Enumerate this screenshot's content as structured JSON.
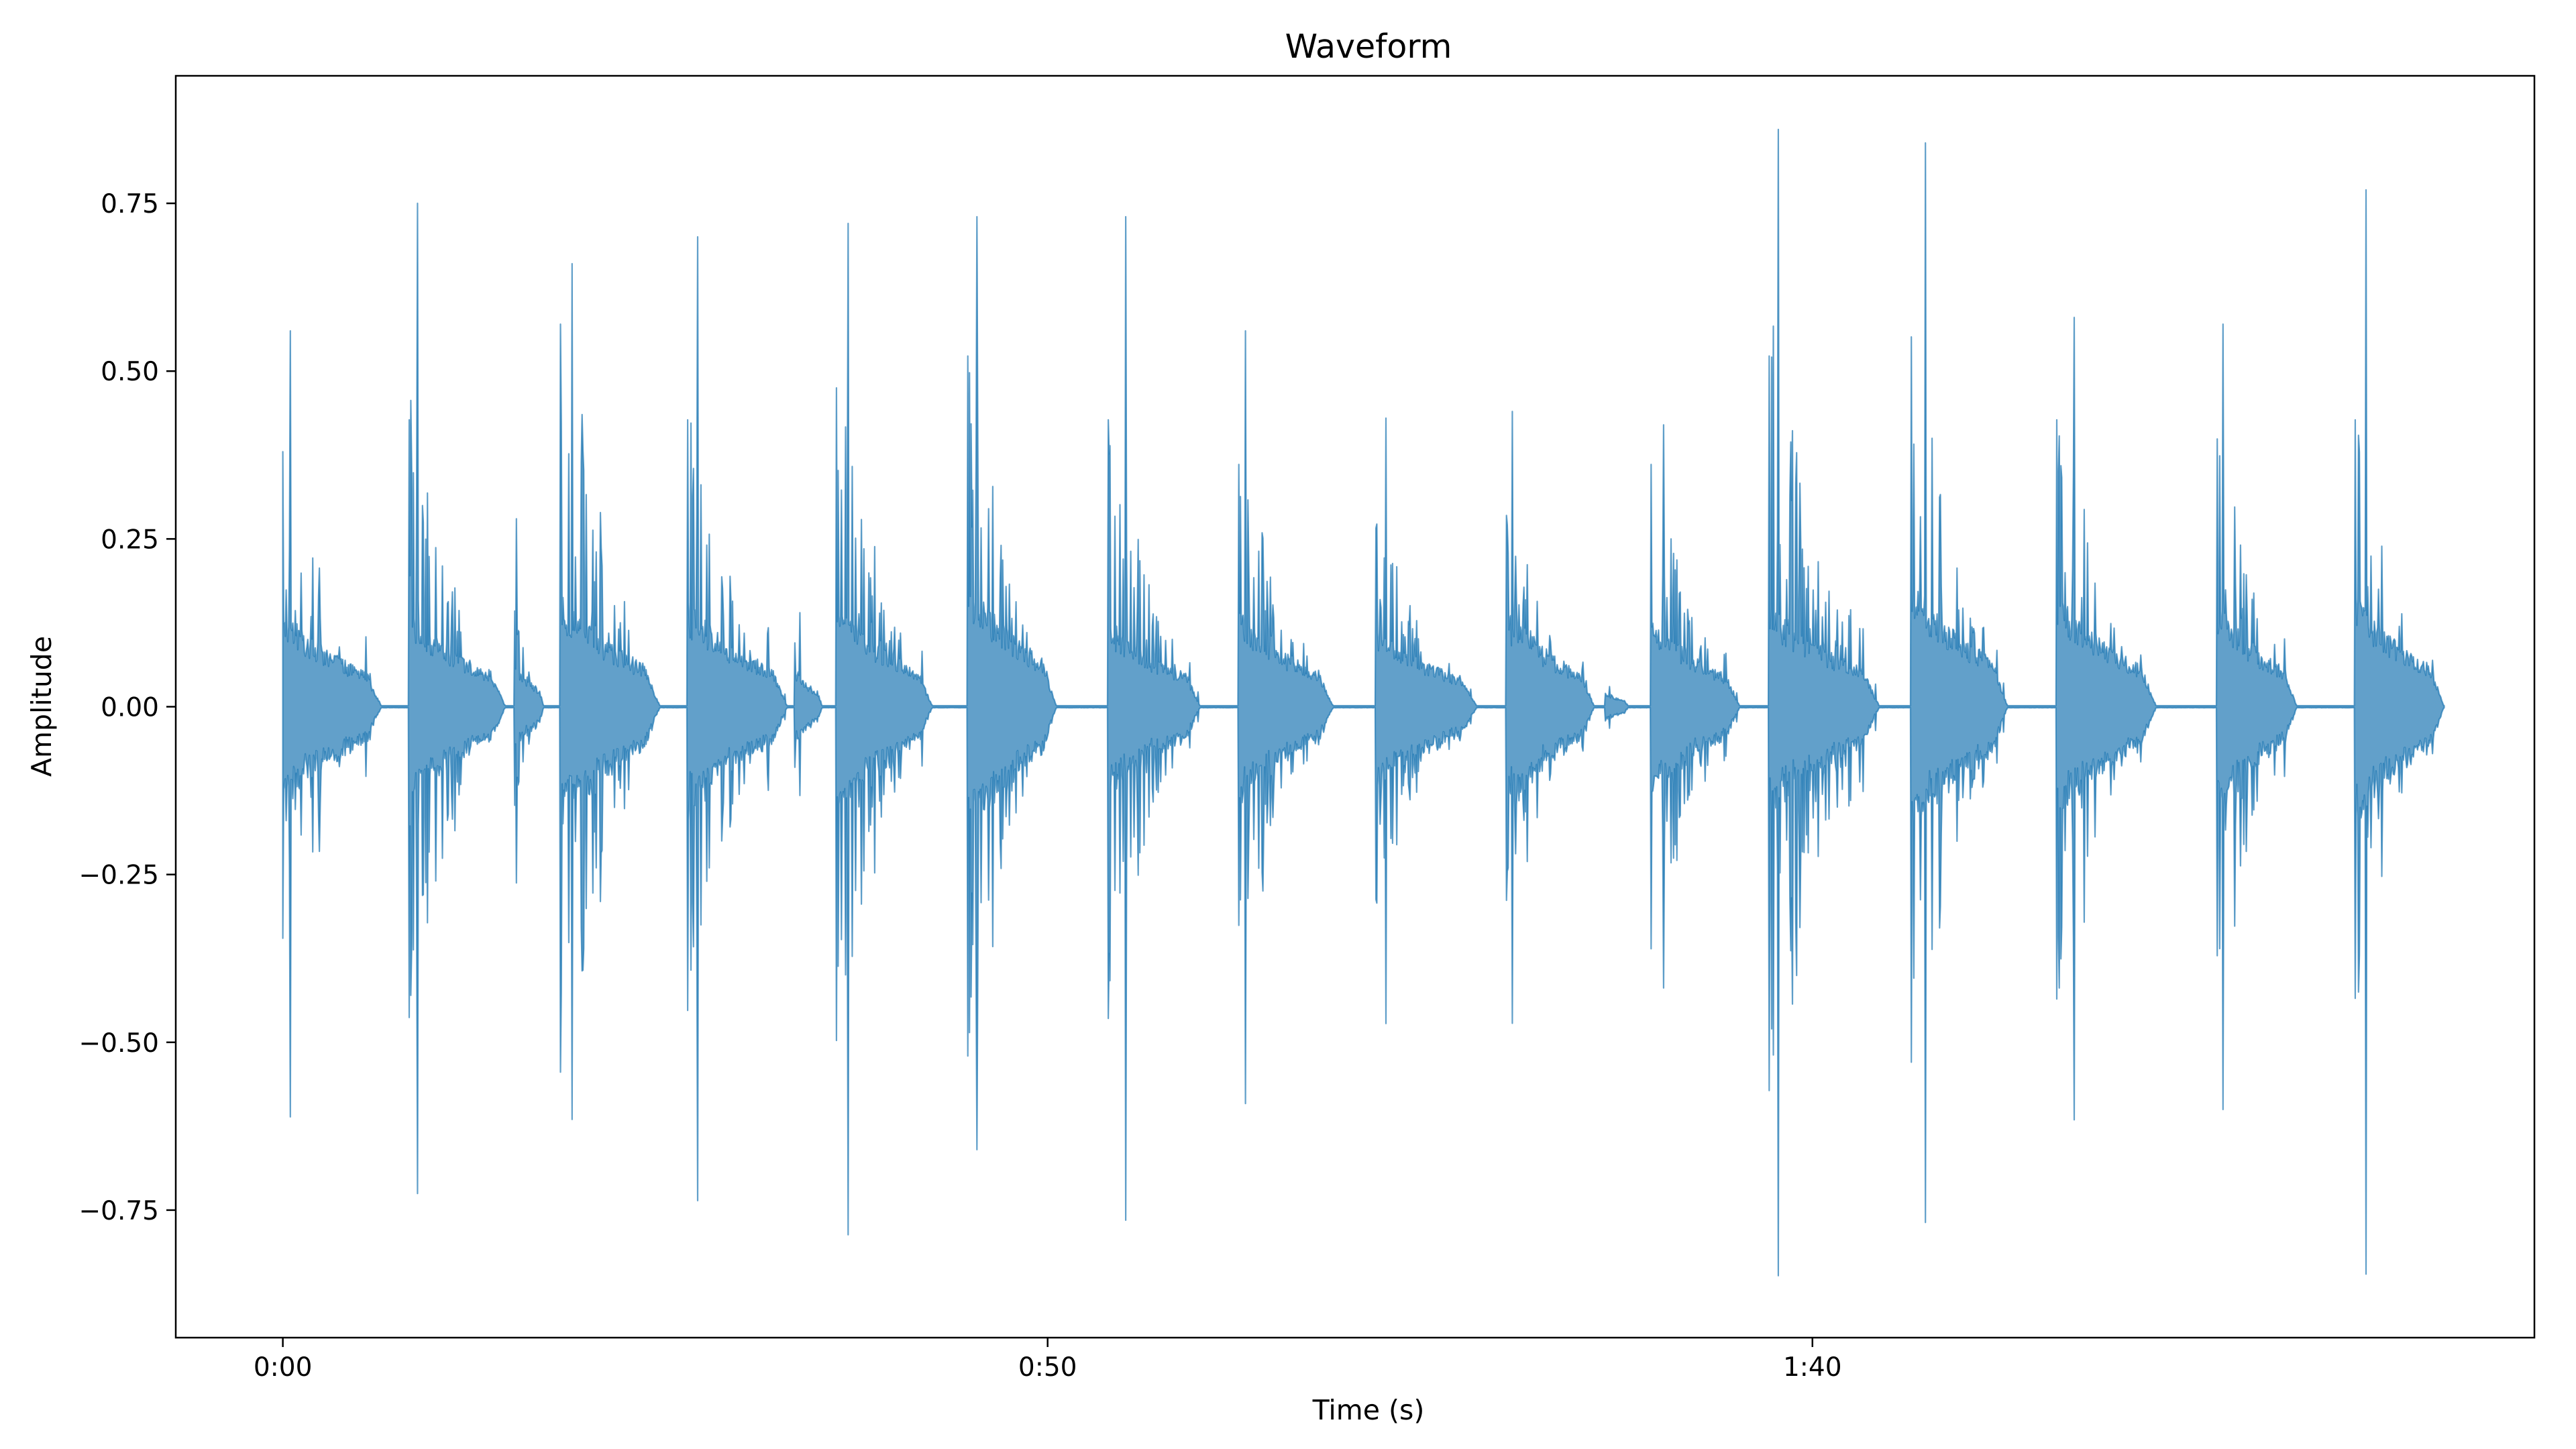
{
  "chart_data": {
    "type": "area",
    "title": "Waveform",
    "xlabel": "Time (s)",
    "ylabel": "Amplitude",
    "xlim": [
      -7.0,
      147.2
    ],
    "ylim": [
      -0.94,
      0.94
    ],
    "x_ticks": [
      {
        "value": 0,
        "label": "0:00"
      },
      {
        "value": 50,
        "label": "0:50"
      },
      {
        "value": 100,
        "label": "1:40"
      }
    ],
    "y_ticks": [
      {
        "value": 0.75,
        "label": "0.75"
      },
      {
        "value": 0.5,
        "label": "0.50"
      },
      {
        "value": 0.25,
        "label": "0.25"
      },
      {
        "value": 0.0,
        "label": "0.00"
      },
      {
        "value": -0.25,
        "label": "−0.25"
      },
      {
        "value": -0.5,
        "label": "−0.50"
      },
      {
        "value": -0.75,
        "label": "−0.75"
      }
    ],
    "grid": false,
    "series": [
      {
        "color": "#1f77b4",
        "opacity": 0.7,
        "duration": 141.3,
        "bursts": [
          {
            "t": 0.0,
            "peak": 0.56,
            "body": 0.4,
            "dur": 6.5,
            "fill": 0.12
          },
          {
            "t": 8.3,
            "peak": 0.75,
            "body": 0.45,
            "dur": 6.3,
            "fill": 0.12
          },
          {
            "t": 15.2,
            "peak": 0.28,
            "body": 0.15,
            "dur": 1.9,
            "fill": 0.06
          },
          {
            "t": 18.2,
            "peak": 0.66,
            "body": 0.6,
            "dur": 6.5,
            "fill": 0.14
          },
          {
            "t": 26.5,
            "peak": 0.7,
            "body": 0.45,
            "dur": 6.5,
            "fill": 0.13
          },
          {
            "t": 33.5,
            "peak": 0.14,
            "body": 0.1,
            "dur": 1.8,
            "fill": 0.05
          },
          {
            "t": 36.2,
            "peak": 0.72,
            "body": 0.5,
            "dur": 6.3,
            "fill": 0.13
          },
          {
            "t": 44.8,
            "peak": 0.73,
            "body": 0.55,
            "dur": 5.8,
            "fill": 0.16
          },
          {
            "t": 54.0,
            "peak": 0.73,
            "body": 0.45,
            "dur": 6.0,
            "fill": 0.11
          },
          {
            "t": 62.5,
            "peak": 0.56,
            "body": 0.38,
            "dur": 6.2,
            "fill": 0.12
          },
          {
            "t": 71.5,
            "peak": 0.43,
            "body": 0.28,
            "dur": 6.6,
            "fill": 0.1
          },
          {
            "t": 80.0,
            "peak": 0.44,
            "body": 0.3,
            "dur": 5.8,
            "fill": 0.12
          },
          {
            "t": 86.5,
            "peak": 0.03,
            "body": 0.02,
            "dur": 1.5,
            "fill": 0.02
          },
          {
            "t": 89.5,
            "peak": 0.42,
            "body": 0.38,
            "dur": 5.8,
            "fill": 0.11
          },
          {
            "t": 97.2,
            "peak": 0.86,
            "body": 0.55,
            "dur": 7.2,
            "fill": 0.13
          },
          {
            "t": 106.5,
            "peak": 0.84,
            "body": 0.58,
            "dur": 6.3,
            "fill": 0.16
          },
          {
            "t": 116.0,
            "peak": 0.58,
            "body": 0.45,
            "dur": 6.5,
            "fill": 0.14
          },
          {
            "t": 126.5,
            "peak": 0.57,
            "body": 0.42,
            "dur": 5.2,
            "fill": 0.13
          },
          {
            "t": 135.5,
            "peak": 0.77,
            "body": 0.45,
            "dur": 5.8,
            "fill": 0.14
          }
        ]
      }
    ]
  }
}
